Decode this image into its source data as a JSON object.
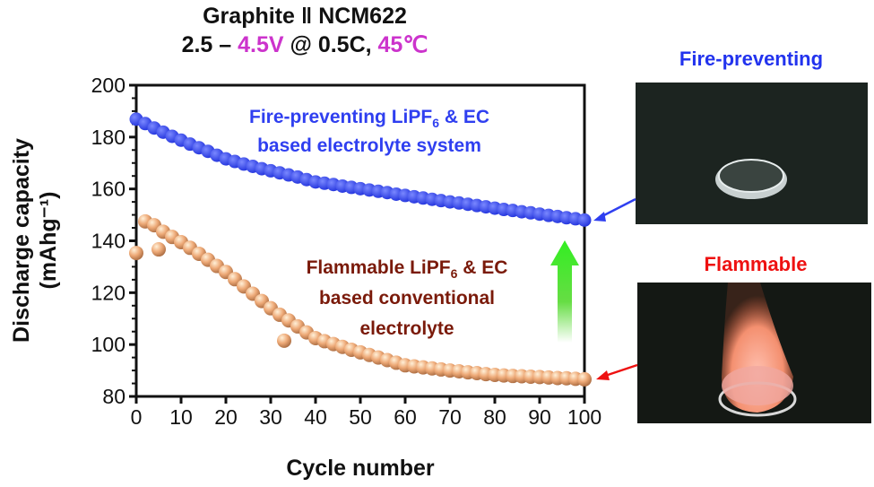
{
  "title": {
    "line1": "Graphite ǁ NCM622",
    "line2_parts": [
      "2.5 – ",
      "4.5V",
      " @ 0.5C, ",
      "45℃"
    ],
    "accent_color": "#cc33cc"
  },
  "photos": {
    "top_label": "Fire-preventing",
    "top_label_color": "#2233ee",
    "bottom_label": "Flammable",
    "bottom_label_color": "#ee1111"
  },
  "chart_data": {
    "type": "scatter",
    "xlabel": "Cycle number",
    "ylabel": "Discharge capacity",
    "ylabel_unit": "(mAhg⁻¹)",
    "xlim": [
      0,
      100
    ],
    "ylim": [
      80,
      200
    ],
    "xticks": [
      0,
      10,
      20,
      30,
      40,
      50,
      60,
      70,
      80,
      90,
      100
    ],
    "yticks": [
      80,
      100,
      120,
      140,
      160,
      180,
      200
    ],
    "grid": false,
    "series": [
      {
        "label_line1": "Fire-preventing LiPF",
        "label_sub": "6",
        "label_line1_end": " & EC",
        "label_line2": "based electrolyte system",
        "color": "#2f3ff0",
        "x": [
          0,
          2,
          4,
          6,
          8,
          10,
          12,
          14,
          16,
          18,
          20,
          22,
          24,
          26,
          28,
          30,
          32,
          34,
          36,
          38,
          40,
          42,
          44,
          46,
          48,
          50,
          52,
          54,
          56,
          58,
          60,
          62,
          64,
          66,
          68,
          70,
          72,
          74,
          76,
          78,
          80,
          82,
          84,
          86,
          88,
          90,
          92,
          94,
          96,
          98,
          100
        ],
        "y": [
          186.9,
          185.2,
          183.5,
          181.9,
          180.3,
          178.8,
          177.3,
          175.9,
          174.5,
          173.0,
          171.6,
          170.6,
          169.6,
          168.7,
          167.8,
          167.0,
          166.2,
          165.4,
          164.6,
          163.6,
          162.7,
          162.2,
          161.7,
          161.1,
          160.6,
          160.1,
          159.6,
          159.1,
          158.6,
          158.0,
          157.5,
          157.0,
          156.5,
          156.0,
          155.5,
          155.0,
          154.6,
          154.1,
          153.6,
          153.1,
          152.6,
          152.1,
          151.7,
          151.2,
          150.8,
          150.3,
          149.8,
          149.4,
          148.9,
          148.5,
          148.0
        ]
      },
      {
        "label_line1": "Flammable LiPF",
        "label_sub": "6",
        "label_line1_end": " & EC",
        "label_line2": "based conventional",
        "label_line3": "electrolyte",
        "color": "#e8a070",
        "label_color": "#7a1a0a",
        "x": [
          0,
          2,
          4,
          5,
          6,
          8,
          10,
          12,
          14,
          16,
          18,
          20,
          22,
          24,
          26,
          28,
          30,
          32,
          33,
          34,
          36,
          38,
          40,
          42,
          44,
          46,
          48,
          50,
          52,
          54,
          56,
          58,
          60,
          62,
          64,
          66,
          68,
          70,
          72,
          74,
          76,
          78,
          80,
          82,
          84,
          86,
          88,
          90,
          92,
          94,
          96,
          98,
          100
        ],
        "y": [
          135.3,
          147.5,
          146.0,
          136.7,
          143.5,
          141.5,
          139.5,
          137.3,
          135.0,
          132.7,
          130.3,
          128.0,
          125.2,
          122.4,
          119.6,
          116.8,
          114.0,
          111.5,
          101.5,
          109.3,
          107.0,
          104.7,
          102.5,
          101.3,
          100.2,
          99.1,
          98.0,
          97.0,
          96.0,
          95.0,
          94.0,
          93.0,
          92.0,
          91.6,
          91.2,
          90.8,
          90.4,
          90.0,
          89.7,
          89.3,
          89.0,
          88.6,
          88.3,
          88.1,
          87.9,
          87.8,
          87.6,
          87.5,
          87.3,
          87.1,
          87.0,
          86.8,
          86.6
        ]
      }
    ]
  }
}
